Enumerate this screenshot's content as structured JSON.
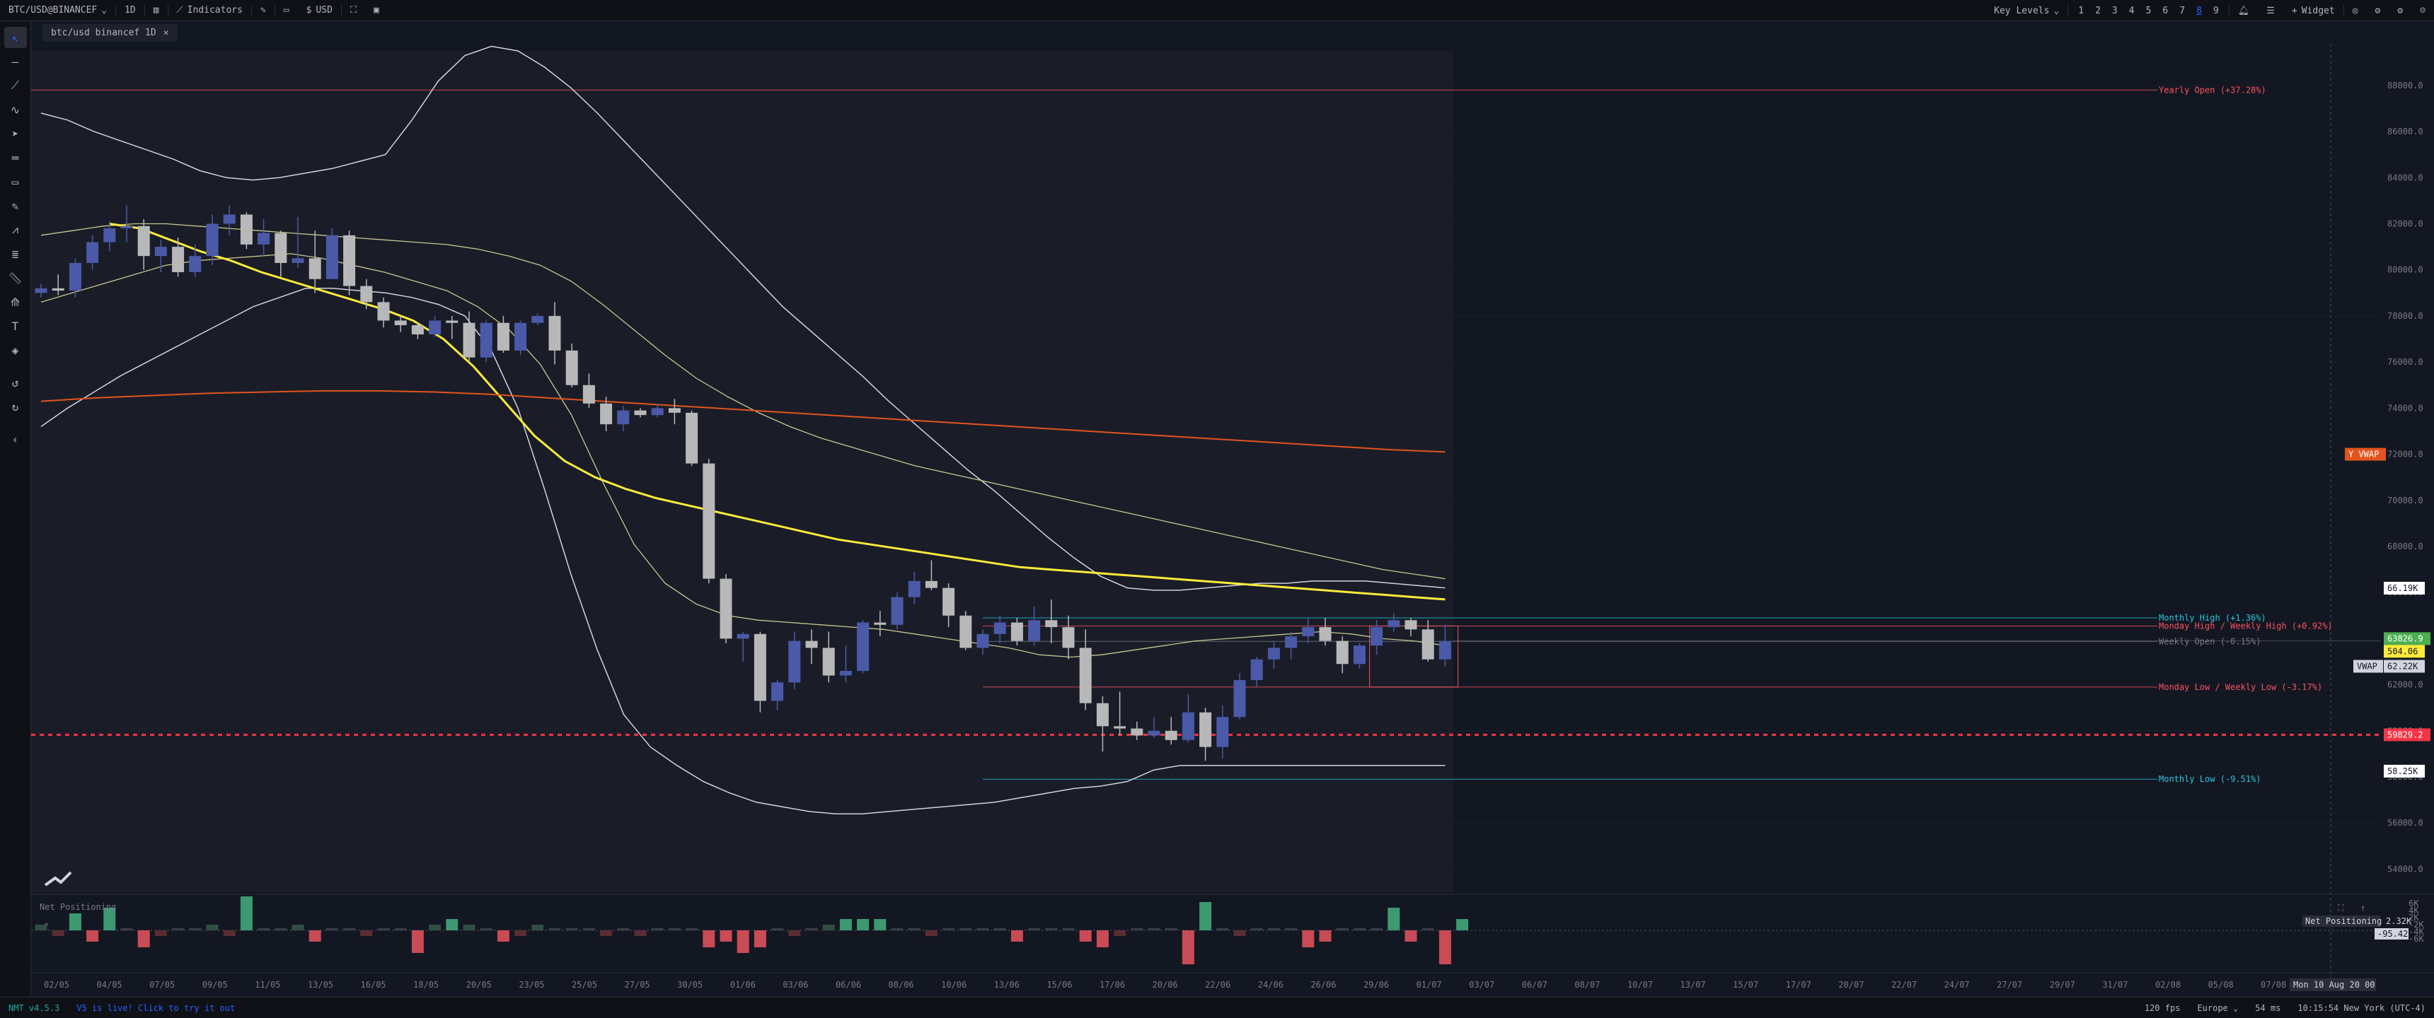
{
  "topbar": {
    "symbol": "BTC/USD@BINANCEF",
    "interval": "1D",
    "indicators_label": "Indicators",
    "currency_label": "USD",
    "key_levels_label": "Key Levels",
    "layout_numbers": [
      "1",
      "2",
      "3",
      "4",
      "5",
      "6",
      "7",
      "8",
      "9"
    ],
    "active_layout": "8",
    "widget_label": "Widget"
  },
  "tab": {
    "label": "btc/usd binancef 1D"
  },
  "chart_data": {
    "type": "candlestick",
    "x_ticks": [
      "02/05",
      "04/05",
      "07/05",
      "09/05",
      "11/05",
      "13/05",
      "16/05",
      "18/05",
      "20/05",
      "23/05",
      "25/05",
      "27/05",
      "30/05",
      "01/06",
      "03/06",
      "06/06",
      "08/06",
      "10/06",
      "13/06",
      "15/06",
      "17/06",
      "20/06",
      "22/06",
      "24/06",
      "26/06",
      "29/06",
      "01/07",
      "03/07",
      "06/07",
      "08/07",
      "10/07",
      "13/07",
      "15/07",
      "17/07",
      "20/07",
      "22/07",
      "24/07",
      "27/07",
      "29/07",
      "31/07",
      "02/08",
      "05/08",
      "07/08",
      "10/08"
    ],
    "y_ticks": [
      54000,
      56000,
      58000,
      60000,
      62000,
      64000,
      66000,
      68000,
      70000,
      72000,
      74000,
      76000,
      78000,
      80000,
      82000,
      84000,
      86000,
      88000
    ],
    "ylim": [
      53000,
      89500
    ],
    "candles": [
      [
        79000,
        79400,
        78800,
        79200
      ],
      [
        79200,
        79800,
        78900,
        79100
      ],
      [
        79100,
        80500,
        78800,
        80300
      ],
      [
        80300,
        81500,
        80000,
        81200
      ],
      [
        81200,
        82100,
        80800,
        81800
      ],
      [
        81800,
        82800,
        81200,
        81900
      ],
      [
        81900,
        82200,
        80000,
        80600
      ],
      [
        80600,
        81300,
        79900,
        81000
      ],
      [
        81000,
        81400,
        79700,
        79900
      ],
      [
        79900,
        81100,
        79700,
        80600
      ],
      [
        80600,
        82400,
        80200,
        82000
      ],
      [
        82000,
        82800,
        81500,
        82400
      ],
      [
        82400,
        82500,
        80900,
        81100
      ],
      [
        81100,
        82200,
        80600,
        81600
      ],
      [
        81600,
        81700,
        79700,
        80300
      ],
      [
        80300,
        82300,
        80100,
        80500
      ],
      [
        80500,
        81700,
        79000,
        79600
      ],
      [
        79600,
        81800,
        79600,
        81500
      ],
      [
        81500,
        81700,
        78900,
        79300
      ],
      [
        79300,
        79600,
        78300,
        78600
      ],
      [
        78600,
        78800,
        77500,
        77800
      ],
      [
        77800,
        78000,
        77300,
        77600
      ],
      [
        77600,
        77700,
        77000,
        77200
      ],
      [
        77200,
        78000,
        77100,
        77800
      ],
      [
        77800,
        78000,
        77000,
        77700
      ],
      [
        77700,
        78200,
        76000,
        76200
      ],
      [
        76200,
        77800,
        76000,
        77700
      ],
      [
        77700,
        78000,
        76400,
        76500
      ],
      [
        76500,
        77800,
        76300,
        77700
      ],
      [
        77700,
        78100,
        77600,
        78000
      ],
      [
        78000,
        78600,
        75900,
        76500
      ],
      [
        76500,
        76800,
        74900,
        75000
      ],
      [
        75000,
        75500,
        74000,
        74200
      ],
      [
        74200,
        74500,
        73000,
        73300
      ],
      [
        73300,
        74100,
        73000,
        73900
      ],
      [
        73900,
        74000,
        73600,
        73700
      ],
      [
        73700,
        74200,
        73600,
        74000
      ],
      [
        74000,
        74400,
        73300,
        73800
      ],
      [
        73800,
        73900,
        71500,
        71600
      ],
      [
        71600,
        71800,
        66400,
        66600
      ],
      [
        66600,
        66800,
        63800,
        64000
      ],
      [
        64000,
        64300,
        63000,
        64200
      ],
      [
        64200,
        64300,
        60800,
        61300
      ],
      [
        61300,
        62200,
        60900,
        62100
      ],
      [
        62100,
        64300,
        61800,
        63900
      ],
      [
        63900,
        64400,
        62900,
        63600
      ],
      [
        63600,
        64300,
        62100,
        62400
      ],
      [
        62400,
        63700,
        62100,
        62600
      ],
      [
        62600,
        64800,
        62500,
        64700
      ],
      [
        64700,
        65200,
        64100,
        64600
      ],
      [
        64600,
        66000,
        64400,
        65800
      ],
      [
        65800,
        66900,
        65500,
        66500
      ],
      [
        66500,
        67400,
        66100,
        66200
      ],
      [
        66200,
        66400,
        64500,
        65000
      ],
      [
        65000,
        65200,
        63500,
        63600
      ],
      [
        63600,
        64400,
        63300,
        64200
      ],
      [
        64200,
        65000,
        63800,
        64700
      ],
      [
        64700,
        64900,
        63700,
        63900
      ],
      [
        63900,
        65400,
        63700,
        64800
      ],
      [
        64800,
        65700,
        63800,
        64500
      ],
      [
        64500,
        65000,
        63100,
        63600
      ],
      [
        63600,
        64400,
        60900,
        61200
      ],
      [
        61200,
        61500,
        59100,
        60200
      ],
      [
        60200,
        61700,
        59800,
        60100
      ],
      [
        60100,
        60400,
        59600,
        59800
      ],
      [
        59800,
        60600,
        59700,
        60000
      ],
      [
        60000,
        60600,
        59400,
        59600
      ],
      [
        59600,
        61600,
        59500,
        60800
      ],
      [
        60800,
        61000,
        58700,
        59300
      ],
      [
        59300,
        61100,
        58800,
        60600
      ],
      [
        60600,
        62500,
        60500,
        62200
      ],
      [
        62200,
        63200,
        61900,
        63100
      ],
      [
        63100,
        63900,
        62700,
        63600
      ],
      [
        63600,
        64300,
        63100,
        64100
      ],
      [
        64100,
        64900,
        63800,
        64500
      ],
      [
        64500,
        64900,
        63700,
        63900
      ],
      [
        63900,
        64100,
        62500,
        62900
      ],
      [
        62900,
        63800,
        62700,
        63700
      ],
      [
        63700,
        64800,
        63300,
        64500
      ],
      [
        64500,
        65100,
        64300,
        64800
      ],
      [
        64800,
        64900,
        64100,
        64400
      ],
      [
        64400,
        64800,
        63000,
        63100
      ],
      [
        63100,
        64600,
        62800,
        63900
      ]
    ],
    "band_upper": [
      86800,
      86500,
      86000,
      85600,
      85200,
      84800,
      84300,
      84000,
      83900,
      84000,
      84200,
      84400,
      84700,
      85000,
      86500,
      88200,
      89300,
      89700,
      89500,
      88800,
      87900,
      86800,
      85600,
      84400,
      83200,
      82000,
      80800,
      79600,
      78400,
      77400,
      76400,
      75400,
      74300,
      73300,
      72300,
      71300,
      70400,
      69400,
      68400,
      67500,
      66700,
      66200,
      66100,
      66100,
      66200,
      66300,
      66400,
      66400,
      66500,
      66500,
      66500,
      66400,
      66300,
      66200
    ],
    "band_lower": [
      73200,
      74000,
      74700,
      75400,
      76000,
      76600,
      77200,
      77800,
      78400,
      78800,
      79200,
      79200,
      79100,
      79000,
      78800,
      78500,
      78000,
      76500,
      74000,
      70500,
      66800,
      63500,
      60700,
      59300,
      58500,
      57800,
      57300,
      56900,
      56700,
      56500,
      56400,
      56400,
      56500,
      56600,
      56700,
      56800,
      56900,
      57100,
      57300,
      57500,
      57600,
      57800,
      58300,
      58500,
      58500,
      58500,
      58500,
      58500,
      58500,
      58500,
      58500,
      58500,
      58500,
      58500
    ],
    "band_mid_upper": [
      81500,
      81700,
      81900,
      82000,
      82000,
      81900,
      81800,
      81700,
      81600,
      81500,
      81400,
      81300,
      81200,
      81100,
      80900,
      80600,
      80200,
      79500,
      78500,
      77400,
      76300,
      75300,
      74500,
      73800,
      73200,
      72700,
      72300,
      71900,
      71500,
      71200,
      70900,
      70600,
      70300,
      70000,
      69700,
      69400,
      69100,
      68800,
      68500,
      68200,
      67900,
      67600,
      67300,
      67000,
      66800,
      66600
    ],
    "band_mid_lower": [
      78600,
      79000,
      79400,
      79800,
      80200,
      80400,
      80500,
      80600,
      80700,
      80500,
      80200,
      79900,
      79500,
      79100,
      78400,
      77400,
      75900,
      73700,
      70800,
      68100,
      66400,
      65500,
      65000,
      64800,
      64700,
      64600,
      64500,
      64400,
      64200,
      64000,
      63800,
      63600,
      63300,
      63200,
      63300,
      63500,
      63700,
      63900,
      64000,
      64100,
      64200,
      64300,
      64200,
      64000,
      63900,
      63700
    ],
    "ma_yellow": [
      82000,
      81800,
      81300,
      80800,
      80400,
      79900,
      79500,
      79100,
      78700,
      78300,
      77800,
      77000,
      75800,
      74300,
      72800,
      71700,
      71000,
      70500,
      70100,
      69800,
      69500,
      69200,
      68900,
      68600,
      68300,
      68100,
      67900,
      67700,
      67500,
      67300,
      67100,
      67000,
      66900,
      66800,
      66700,
      66600,
      66500,
      66400,
      66300,
      66200,
      66100,
      66000,
      65900,
      65800,
      65700
    ],
    "vwap_orange": [
      74300,
      74450,
      74550,
      74650,
      74700,
      74750,
      74750,
      74700,
      74600,
      74450,
      74300,
      74150,
      74000,
      73850,
      73700,
      73550,
      73400,
      73250,
      73100,
      72950,
      72800,
      72650,
      72500,
      72350,
      72200,
      72100
    ],
    "levels": [
      {
        "label": "Yearly Open (+37.28%)",
        "value": 87800,
        "color": "#f7525f"
      },
      {
        "label": "Monthly High (+1.36%)",
        "value": 64900,
        "color": "#26c6da"
      },
      {
        "label": "Monday High / Weekly High (+0.92%)",
        "value": 64550,
        "color": "#f7525f"
      },
      {
        "label": "Weekly Open (-0.15%)",
        "value": 63880,
        "color": "#787b86"
      },
      {
        "label": "Monday Low / Weekly Low (-3.17%)",
        "value": 61900,
        "color": "#f7525f"
      },
      {
        "label": "Monthly Low (-9.51%)",
        "value": 57900,
        "color": "#26c6da"
      }
    ],
    "price_tags": [
      {
        "label": "Y VWAP",
        "value": 72000,
        "bg": "#e2541c",
        "fg": "#ffffff",
        "side": "left"
      },
      {
        "label": "66.19K",
        "value": 66190,
        "bg": "#ffffff",
        "fg": "#131722",
        "side": "axis"
      },
      {
        "label": "63826.9",
        "value": 64000,
        "bg": "#4caf50",
        "fg": "#ffffff",
        "side": "axis"
      },
      {
        "label": "504.06",
        "value": 63450,
        "bg": "#ffeb3b",
        "fg": "#131722",
        "side": "axis"
      },
      {
        "label": "VWAP",
        "value": 62800,
        "bg": "#d1d4dc",
        "fg": "#131722",
        "side": "left"
      },
      {
        "label": "62.22K",
        "value": 62800,
        "bg": "#d1d4dc",
        "fg": "#131722",
        "side": "axis"
      },
      {
        "label": "59829.2",
        "value": 59829,
        "bg": "#f23645",
        "fg": "#ffffff",
        "side": "axis"
      },
      {
        "label": "58.25K",
        "value": 58250,
        "bg": "#ffffff",
        "fg": "#131722",
        "side": "axis"
      }
    ],
    "red_dashed": 59829,
    "volume_bars": [
      1,
      -1,
      3,
      -2,
      4,
      0,
      -3,
      -1,
      0,
      0,
      1,
      -1,
      6,
      0,
      0,
      1,
      -2,
      0,
      0,
      -1,
      0,
      0,
      -4,
      1,
      2,
      1,
      0,
      -2,
      -1,
      1,
      0,
      0,
      0,
      -1,
      0,
      -1,
      0,
      0,
      0,
      -3,
      -2,
      -4,
      -3,
      0,
      -1,
      0,
      1,
      2,
      2,
      2,
      0,
      0,
      -1,
      0,
      0,
      0,
      0,
      -2,
      0,
      0,
      0,
      -2,
      -3,
      -1,
      0,
      0,
      0,
      -6,
      5,
      0,
      -1,
      0,
      0,
      0,
      -3,
      -2,
      0,
      0,
      0,
      4,
      -2,
      0,
      -6,
      2
    ],
    "volume_ticks": [
      "6K",
      "4K",
      "2K",
      "-2K",
      "-4K",
      "-6K"
    ]
  },
  "indicator_pane": {
    "title": "Net Positioning",
    "tag_label": "Net Positioning",
    "tag_value": "2.32K",
    "value_tag": "-95.42"
  },
  "crosshair_date": "Mon 10 Aug 20 00",
  "status": {
    "version": "NMT v4.5.3",
    "live": "V5 is live! Click to try it out",
    "fps": "120 fps",
    "region": "Europe",
    "latency": "54 ms",
    "clock": "10:15:54 New York (UTC-4)"
  },
  "colors": {
    "bull": "#4a5aa8",
    "bear": "#b8b8b8",
    "band": "#d1d4dc",
    "ma": "#ffeb3b",
    "vwap": "#e2541c"
  }
}
